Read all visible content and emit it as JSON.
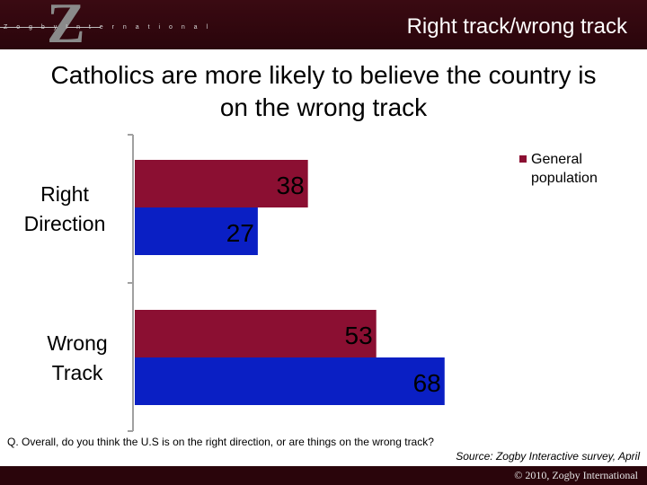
{
  "header": {
    "logo_text": "Z o g b y   I n t e r n a t i o n a l",
    "title": "Right track/wrong track"
  },
  "slide_title_line1": "Catholics are more likely to believe the country is",
  "slide_title_line2": "on the wrong track",
  "legend": {
    "label": "General population"
  },
  "colors": {
    "series1": "#8b0f32",
    "series2": "#0a1fc4",
    "dark": "#2a050b"
  },
  "chart_data": {
    "type": "bar",
    "orientation": "horizontal",
    "categories": [
      "Right Direction",
      "Wrong Track"
    ],
    "category_lines": [
      [
        "Right",
        "Direction"
      ],
      [
        "Wrong",
        "Track"
      ]
    ],
    "series": [
      {
        "name": "General population",
        "values": [
          38,
          53
        ]
      },
      {
        "name": "",
        "values": [
          27,
          68
        ]
      }
    ],
    "data_labels": true,
    "legend_position": "top-right",
    "xlim": [
      0,
      100
    ],
    "grid": false
  },
  "footnote": {
    "question": "Q.   Overall, do you think the U.S is on the right direction, or are things on the wrong track?",
    "source": "Source: Zogby Interactive survey, April"
  },
  "footer": {
    "copyright": "© 2010, Zogby International"
  }
}
